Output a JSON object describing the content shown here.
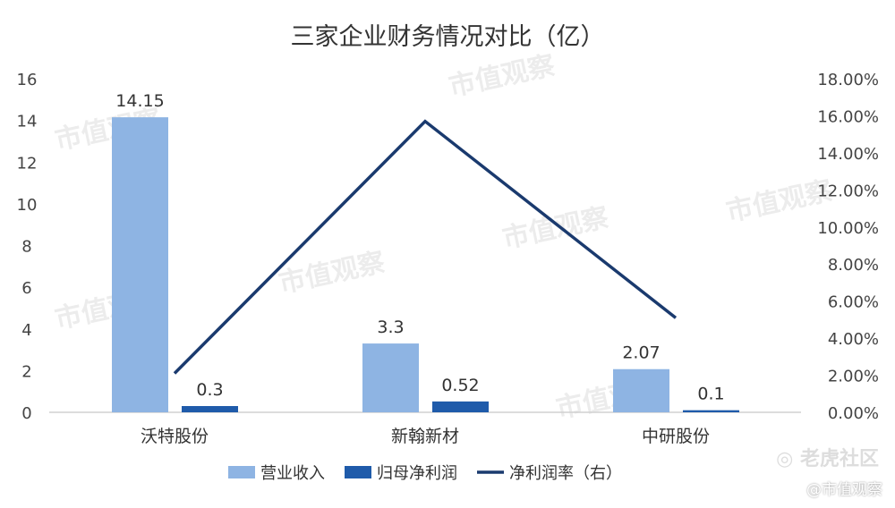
{
  "chart_data": {
    "type": "bar",
    "title": "三家企业财务情况对比（亿）",
    "categories": [
      "沃特股份",
      "新翰新材",
      "中研股份"
    ],
    "series": [
      {
        "name": "营业收入",
        "type": "bar",
        "axis": "left",
        "color": "#8EB4E3",
        "values": [
          14.15,
          3.3,
          2.07
        ]
      },
      {
        "name": "归母净利润",
        "type": "bar",
        "axis": "left",
        "color": "#1F5BAA",
        "values": [
          0.3,
          0.52,
          0.1
        ]
      },
      {
        "name": "净利润率（右）",
        "type": "line",
        "axis": "right",
        "color": "#1A3A6E",
        "values": [
          2.1,
          15.7,
          5.1
        ]
      }
    ],
    "y_left": {
      "ylim": [
        0,
        16
      ],
      "ticks": [
        "0",
        "2",
        "4",
        "6",
        "8",
        "10",
        "12",
        "14",
        "16"
      ]
    },
    "y_right": {
      "ylim": [
        0,
        18
      ],
      "ticks": [
        "0.00%",
        "2.00%",
        "4.00%",
        "6.00%",
        "8.00%",
        "10.00%",
        "12.00%",
        "14.00%",
        "16.00%",
        "18.00%"
      ]
    },
    "data_labels": [
      "14.15",
      "0.3",
      "3.3",
      "0.52",
      "2.07",
      "0.1"
    ],
    "grid": false,
    "legend": "bottom"
  },
  "watermark": "市值观察",
  "credits": {
    "tiger": "老虎社区",
    "source": "@市值观察"
  }
}
